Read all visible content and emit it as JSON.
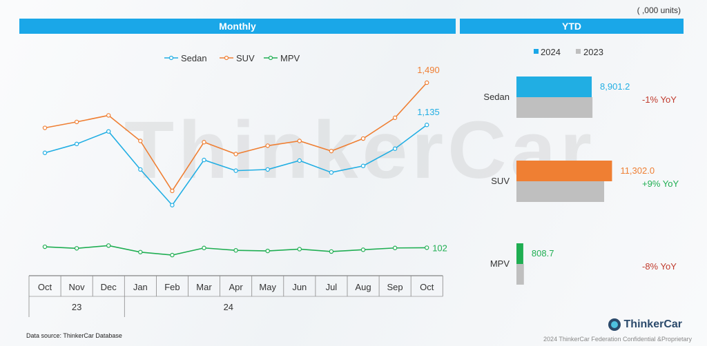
{
  "units_note": "( ,000 units)",
  "headers": {
    "monthly": "Monthly",
    "ytd": "YTD"
  },
  "colors": {
    "sedan": "#21aee3",
    "suv": "#ef7f33",
    "mpv": "#1fae52",
    "y2023": "#bfbfbf",
    "header": "#1aa7e8",
    "yoy_neg": "#c0392b",
    "yoy_pos": "#1fae52"
  },
  "watermark": "ThinkerCar",
  "footer": {
    "source": "Data source: ThinkerCar Database",
    "copyright": "2024 ThinkerCar Federation Confidential &Proprietary",
    "logo": "ThinkerCar"
  },
  "chart_data": [
    {
      "type": "line",
      "title": "Monthly",
      "categories": [
        "Oct",
        "Nov",
        "Dec",
        "Jan",
        "Feb",
        "Mar",
        "Apr",
        "May",
        "Jun",
        "Jul",
        "Aug",
        "Sep",
        "Oct"
      ],
      "year_groups": [
        {
          "label": "23",
          "span": 3
        },
        {
          "label": "24",
          "span": 10
        }
      ],
      "series": [
        {
          "name": "Sedan",
          "color": "#21aee3",
          "values": [
            900,
            975,
            1080,
            760,
            460,
            840,
            750,
            760,
            835,
            735,
            790,
            935,
            1135
          ],
          "end_label": "1,135"
        },
        {
          "name": "SUV",
          "color": "#ef7f33",
          "values": [
            1110,
            1160,
            1215,
            1000,
            580,
            990,
            890,
            960,
            1000,
            915,
            1020,
            1195,
            1490
          ],
          "end_label": "1,490"
        },
        {
          "name": "MPV",
          "color": "#1fae52",
          "values": [
            110,
            97,
            120,
            65,
            40,
            100,
            80,
            75,
            90,
            70,
            85,
            100,
            102
          ],
          "end_label": "102"
        }
      ],
      "legend_position": "top"
    },
    {
      "type": "bar",
      "title": "YTD",
      "orientation": "horizontal",
      "categories": [
        "Sedan",
        "SUV",
        "MPV"
      ],
      "series": [
        {
          "name": "2024",
          "values": [
            8901.2,
            11302.0,
            808.7
          ],
          "labels": [
            "8,901.2",
            "11,302.0",
            "808.7"
          ]
        },
        {
          "name": "2023",
          "values": [
            8990,
            10370,
            880
          ]
        }
      ],
      "yoy": [
        "-1% YoY",
        "+9% YoY",
        "-8% YoY"
      ],
      "legend_position": "top"
    }
  ]
}
